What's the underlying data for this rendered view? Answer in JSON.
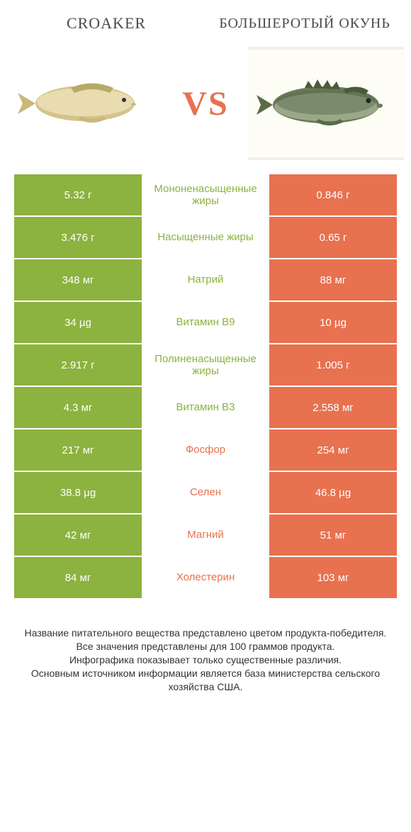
{
  "colors": {
    "green": "#8cb23f",
    "orange": "#e8714f",
    "white": "#ffffff",
    "text": "#4a4a4a"
  },
  "header": {
    "left_title": "CROAKER",
    "right_title": "БОЛЬШЕРОТЫЙ ОКУНЬ",
    "vs": "VS"
  },
  "rows": [
    {
      "left": "5.32 г",
      "mid": "Мононенасыщенные жиры",
      "right": "0.846 г",
      "winner": "left"
    },
    {
      "left": "3.476 г",
      "mid": "Насыщенные жиры",
      "right": "0.65 г",
      "winner": "left"
    },
    {
      "left": "348 мг",
      "mid": "Натрий",
      "right": "88 мг",
      "winner": "left"
    },
    {
      "left": "34 µg",
      "mid": "Витамин B9",
      "right": "10 µg",
      "winner": "left"
    },
    {
      "left": "2.917 г",
      "mid": "Полиненасыщенные жиры",
      "right": "1.005 г",
      "winner": "left"
    },
    {
      "left": "4.3 мг",
      "mid": "Витамин B3",
      "right": "2.558 мг",
      "winner": "left"
    },
    {
      "left": "217 мг",
      "mid": "Фосфор",
      "right": "254 мг",
      "winner": "right"
    },
    {
      "left": "38.8 µg",
      "mid": "Селен",
      "right": "46.8 µg",
      "winner": "right"
    },
    {
      "left": "42 мг",
      "mid": "Магний",
      "right": "51 мг",
      "winner": "right"
    },
    {
      "left": "84 мг",
      "mid": "Холестерин",
      "right": "103 мг",
      "winner": "right"
    }
  ],
  "footer": {
    "line1": "Название питательного вещества представлено цветом продукта-победителя.",
    "line2": "Все значения представлены для 100 граммов продукта.",
    "line3": "Инфографика показывает только существенные различия.",
    "line4": "Основным источником информации является база министерства сельского хозяйства США."
  }
}
